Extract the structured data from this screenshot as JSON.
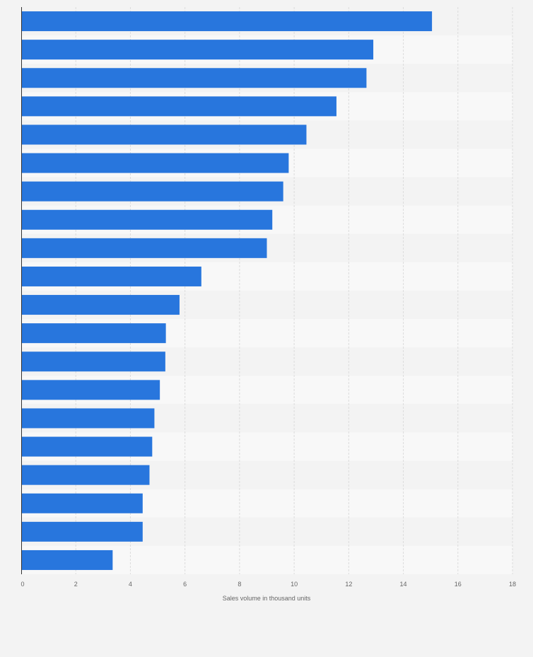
{
  "chart_data": {
    "type": "bar",
    "orientation": "horizontal",
    "title": "",
    "xlabel": "Sales volume in thousand units",
    "ylabel": "",
    "xlim": [
      0,
      18
    ],
    "xticks": [
      0,
      2,
      4,
      6,
      8,
      10,
      12,
      14,
      16,
      18
    ],
    "grid": true,
    "bar_color": "#2876dd",
    "values": [
      15.05,
      12.9,
      12.65,
      11.55,
      10.45,
      9.8,
      9.6,
      9.2,
      9.0,
      6.6,
      5.8,
      5.3,
      5.28,
      5.08,
      4.88,
      4.8,
      4.7,
      4.45,
      4.45,
      3.35
    ]
  }
}
